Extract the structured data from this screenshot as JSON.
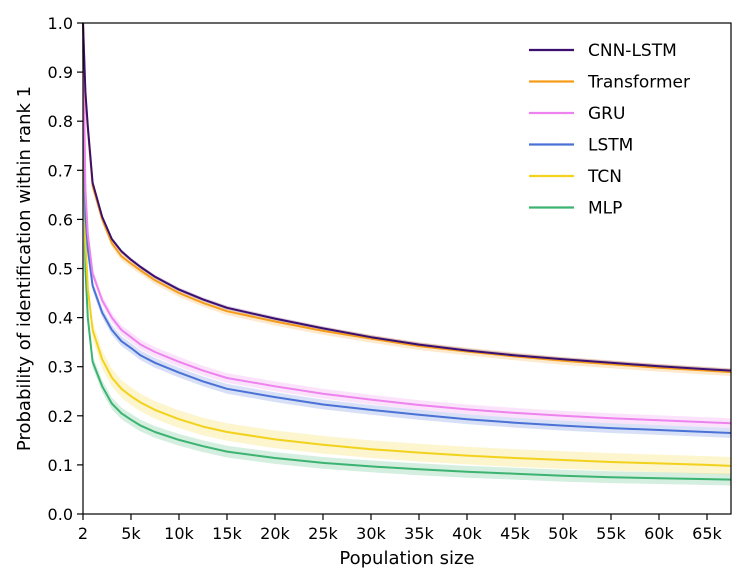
{
  "chart_data": {
    "type": "line",
    "title": "",
    "xlabel": "Population size",
    "ylabel": "Probability of identification within rank 1",
    "xlim": [
      2,
      67500
    ],
    "ylim": [
      0,
      1
    ],
    "xticks": [
      {
        "value": 2,
        "label": "2"
      },
      {
        "value": 5000,
        "label": "5k"
      },
      {
        "value": 10000,
        "label": "10k"
      },
      {
        "value": 15000,
        "label": "15k"
      },
      {
        "value": 20000,
        "label": "20k"
      },
      {
        "value": 25000,
        "label": "25k"
      },
      {
        "value": 30000,
        "label": "30k"
      },
      {
        "value": 35000,
        "label": "35k"
      },
      {
        "value": 40000,
        "label": "40k"
      },
      {
        "value": 45000,
        "label": "45k"
      },
      {
        "value": 50000,
        "label": "50k"
      },
      {
        "value": 55000,
        "label": "55k"
      },
      {
        "value": 60000,
        "label": "60k"
      },
      {
        "value": 65000,
        "label": "65k"
      }
    ],
    "yticks": [
      {
        "value": 0.0,
        "label": "0.0"
      },
      {
        "value": 0.1,
        "label": "0.1"
      },
      {
        "value": 0.2,
        "label": "0.2"
      },
      {
        "value": 0.3,
        "label": "0.3"
      },
      {
        "value": 0.4,
        "label": "0.4"
      },
      {
        "value": 0.5,
        "label": "0.5"
      },
      {
        "value": 0.6,
        "label": "0.6"
      },
      {
        "value": 0.7,
        "label": "0.7"
      },
      {
        "value": 0.8,
        "label": "0.8"
      },
      {
        "value": 0.9,
        "label": "0.9"
      },
      {
        "value": 1.0,
        "label": "1.0"
      }
    ],
    "grid": false,
    "legend_position": "top-right",
    "x": [
      2,
      250,
      500,
      1000,
      2000,
      3000,
      4000,
      5000,
      6000,
      7500,
      10000,
      12500,
      15000,
      20000,
      25000,
      30000,
      35000,
      40000,
      45000,
      50000,
      55000,
      60000,
      65000,
      67500
    ],
    "series": [
      {
        "name": "CNN-LSTM",
        "color": "#3b0f70",
        "band": 0.004,
        "values": [
          1.0,
          0.86,
          0.79,
          0.675,
          0.605,
          0.56,
          0.535,
          0.518,
          0.503,
          0.483,
          0.457,
          0.437,
          0.42,
          0.398,
          0.378,
          0.36,
          0.345,
          0.333,
          0.323,
          0.315,
          0.308,
          0.301,
          0.295,
          0.292
        ]
      },
      {
        "name": "Transformer",
        "color": "#f59c1a",
        "band": 0.008,
        "values": [
          1.0,
          0.85,
          0.785,
          0.668,
          0.6,
          0.552,
          0.525,
          0.51,
          0.496,
          0.476,
          0.45,
          0.43,
          0.413,
          0.392,
          0.373,
          0.357,
          0.342,
          0.331,
          0.321,
          0.312,
          0.305,
          0.298,
          0.292,
          0.289
        ]
      },
      {
        "name": "GRU",
        "color": "#ee82ee",
        "band": 0.01,
        "values": [
          1.0,
          0.66,
          0.57,
          0.49,
          0.435,
          0.4,
          0.375,
          0.36,
          0.345,
          0.33,
          0.31,
          0.292,
          0.277,
          0.26,
          0.245,
          0.233,
          0.222,
          0.213,
          0.206,
          0.2,
          0.195,
          0.191,
          0.187,
          0.185
        ]
      },
      {
        "name": "LSTM",
        "color": "#4a72d6",
        "band": 0.01,
        "values": [
          1.0,
          0.61,
          0.54,
          0.465,
          0.41,
          0.375,
          0.352,
          0.338,
          0.323,
          0.308,
          0.288,
          0.27,
          0.255,
          0.238,
          0.223,
          0.212,
          0.202,
          0.193,
          0.186,
          0.18,
          0.175,
          0.171,
          0.167,
          0.165
        ]
      },
      {
        "name": "TCN",
        "color": "#f2d21d",
        "band": 0.018,
        "values": [
          1.0,
          0.56,
          0.46,
          0.375,
          0.315,
          0.278,
          0.255,
          0.24,
          0.227,
          0.212,
          0.193,
          0.178,
          0.167,
          0.152,
          0.141,
          0.132,
          0.125,
          0.119,
          0.114,
          0.11,
          0.106,
          0.103,
          0.1,
          0.098
        ]
      },
      {
        "name": "MLP",
        "color": "#3cb371",
        "band": 0.012,
        "values": [
          1.0,
          0.5,
          0.4,
          0.31,
          0.26,
          0.225,
          0.205,
          0.192,
          0.18,
          0.167,
          0.151,
          0.138,
          0.127,
          0.114,
          0.104,
          0.097,
          0.091,
          0.086,
          0.082,
          0.078,
          0.075,
          0.073,
          0.071,
          0.07
        ]
      }
    ]
  }
}
